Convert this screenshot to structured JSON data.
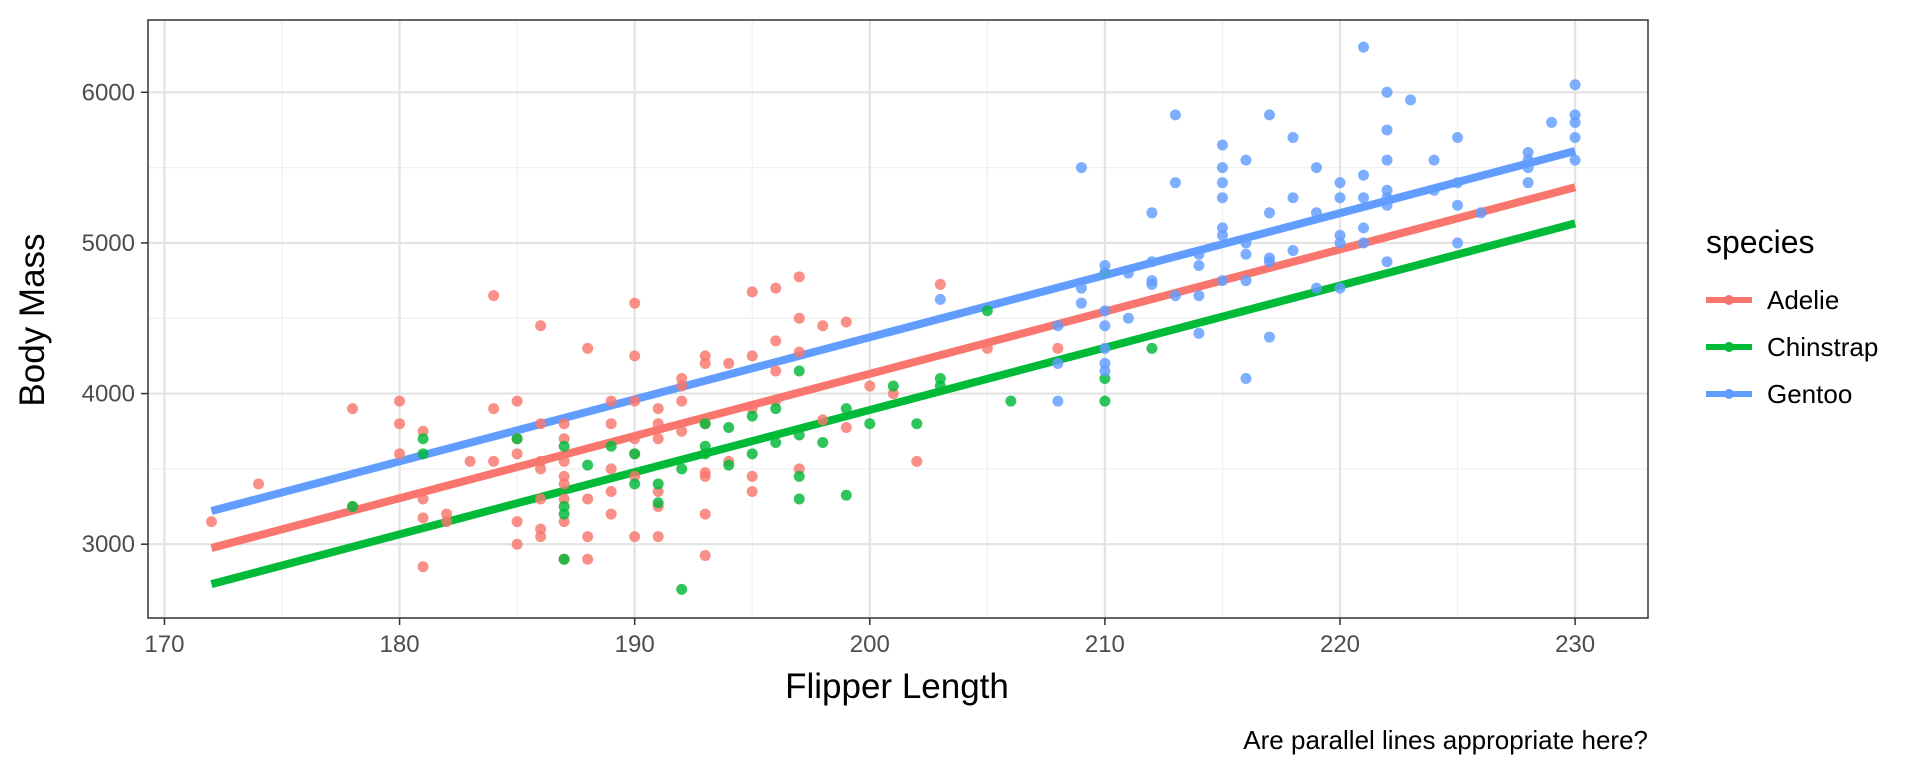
{
  "chart_data": {
    "type": "scatter",
    "xlabel": "Flipper Length",
    "ylabel": "Body Mass",
    "caption": "Are parallel lines appropriate here?",
    "legend_title": "species",
    "legend_position": "right",
    "grid": true,
    "xlim": [
      169.3,
      233.1
    ],
    "ylim": [
      2510,
      6480
    ],
    "xticks": [
      170,
      180,
      190,
      200,
      210,
      220,
      230
    ],
    "yticks": [
      3000,
      4000,
      5000,
      6000
    ],
    "series": [
      {
        "name": "Adelie",
        "color": "#F8766D",
        "fit": {
          "x": [
            172,
            230
          ],
          "y": [
            2975,
            5370
          ]
        },
        "points": [
          [
            172,
            3150
          ],
          [
            174,
            3400
          ],
          [
            178,
            3900
          ],
          [
            178,
            3250
          ],
          [
            180,
            3950
          ],
          [
            180,
            3800
          ],
          [
            180,
            3600
          ],
          [
            181,
            3750
          ],
          [
            181,
            3300
          ],
          [
            181,
            3175
          ],
          [
            181,
            2850
          ],
          [
            182,
            3200
          ],
          [
            182,
            3150
          ],
          [
            183,
            3550
          ],
          [
            184,
            4650
          ],
          [
            184,
            3900
          ],
          [
            184,
            3550
          ],
          [
            185,
            3950
          ],
          [
            185,
            3700
          ],
          [
            185,
            3600
          ],
          [
            185,
            3150
          ],
          [
            185,
            3000
          ],
          [
            186,
            4450
          ],
          [
            186,
            3800
          ],
          [
            186,
            3550
          ],
          [
            186,
            3500
          ],
          [
            186,
            3300
          ],
          [
            186,
            3100
          ],
          [
            186,
            3050
          ],
          [
            187,
            3800
          ],
          [
            187,
            3700
          ],
          [
            187,
            3550
          ],
          [
            187,
            3450
          ],
          [
            187,
            3400
          ],
          [
            187,
            3300
          ],
          [
            187,
            3150
          ],
          [
            187,
            2900
          ],
          [
            188,
            4300
          ],
          [
            188,
            3300
          ],
          [
            188,
            3050
          ],
          [
            188,
            2900
          ],
          [
            189,
            3950
          ],
          [
            189,
            3800
          ],
          [
            189,
            3500
          ],
          [
            189,
            3350
          ],
          [
            189,
            3200
          ],
          [
            190,
            4600
          ],
          [
            190,
            4250
          ],
          [
            190,
            3950
          ],
          [
            190,
            3700
          ],
          [
            190,
            3600
          ],
          [
            190,
            3450
          ],
          [
            190,
            3050
          ],
          [
            191,
            3900
          ],
          [
            191,
            3800
          ],
          [
            191,
            3700
          ],
          [
            191,
            3350
          ],
          [
            191,
            3250
          ],
          [
            191,
            3050
          ],
          [
            192,
            4100
          ],
          [
            192,
            4050
          ],
          [
            192,
            3950
          ],
          [
            192,
            3750
          ],
          [
            193,
            4250
          ],
          [
            193,
            4200
          ],
          [
            193,
            3800
          ],
          [
            193,
            3475
          ],
          [
            193,
            3450
          ],
          [
            193,
            3200
          ],
          [
            193,
            2925
          ],
          [
            194,
            4200
          ],
          [
            194,
            3550
          ],
          [
            195,
            4675
          ],
          [
            195,
            4250
          ],
          [
            195,
            3900
          ],
          [
            195,
            3450
          ],
          [
            195,
            3350
          ],
          [
            196,
            4700
          ],
          [
            196,
            4350
          ],
          [
            196,
            4150
          ],
          [
            196,
            3950
          ],
          [
            197,
            4775
          ],
          [
            197,
            4500
          ],
          [
            197,
            4275
          ],
          [
            197,
            3500
          ],
          [
            198,
            4450
          ],
          [
            198,
            3825
          ],
          [
            199,
            4475
          ],
          [
            199,
            3775
          ],
          [
            200,
            4050
          ],
          [
            201,
            4000
          ],
          [
            202,
            3550
          ],
          [
            203,
            4725
          ],
          [
            205,
            4300
          ],
          [
            208,
            4300
          ]
        ]
      },
      {
        "name": "Chinstrap",
        "color": "#00BA38",
        "fit": {
          "x": [
            172,
            230
          ],
          "y": [
            2735,
            5130
          ]
        },
        "points": [
          [
            178,
            3250
          ],
          [
            181,
            3700
          ],
          [
            181,
            3600
          ],
          [
            185,
            3700
          ],
          [
            187,
            3650
          ],
          [
            187,
            3250
          ],
          [
            187,
            3200
          ],
          [
            187,
            2900
          ],
          [
            188,
            3525
          ],
          [
            189,
            3650
          ],
          [
            190,
            3600
          ],
          [
            190,
            3400
          ],
          [
            191,
            3400
          ],
          [
            191,
            3275
          ],
          [
            192,
            3500
          ],
          [
            192,
            2700
          ],
          [
            193,
            3800
          ],
          [
            193,
            3650
          ],
          [
            193,
            3600
          ],
          [
            194,
            3775
          ],
          [
            194,
            3525
          ],
          [
            195,
            3850
          ],
          [
            195,
            3600
          ],
          [
            196,
            3900
          ],
          [
            196,
            3675
          ],
          [
            197,
            4150
          ],
          [
            197,
            3725
          ],
          [
            197,
            3450
          ],
          [
            197,
            3300
          ],
          [
            198,
            3675
          ],
          [
            199,
            3900
          ],
          [
            199,
            3325
          ],
          [
            200,
            3800
          ],
          [
            201,
            4050
          ],
          [
            202,
            3800
          ],
          [
            203,
            4100
          ],
          [
            203,
            4050
          ],
          [
            205,
            4550
          ],
          [
            206,
            3950
          ],
          [
            210,
            4800
          ],
          [
            210,
            4100
          ],
          [
            210,
            3950
          ],
          [
            212,
            4300
          ]
        ]
      },
      {
        "name": "Gentoo",
        "color": "#619CFF",
        "fit": {
          "x": [
            172,
            230
          ],
          "y": [
            3220,
            5610
          ]
        },
        "points": [
          [
            203,
            4625
          ],
          [
            208,
            4450
          ],
          [
            208,
            4200
          ],
          [
            208,
            3950
          ],
          [
            209,
            5500
          ],
          [
            209,
            4700
          ],
          [
            209,
            4600
          ],
          [
            210,
            4850
          ],
          [
            210,
            4800
          ],
          [
            210,
            4550
          ],
          [
            210,
            4450
          ],
          [
            210,
            4300
          ],
          [
            210,
            4200
          ],
          [
            210,
            4150
          ],
          [
            211,
            4800
          ],
          [
            211,
            4500
          ],
          [
            212,
            5200
          ],
          [
            212,
            4875
          ],
          [
            212,
            4750
          ],
          [
            212,
            4725
          ],
          [
            213,
            5850
          ],
          [
            213,
            5400
          ],
          [
            213,
            4650
          ],
          [
            214,
            4925
          ],
          [
            214,
            4850
          ],
          [
            214,
            4650
          ],
          [
            214,
            4400
          ],
          [
            215,
            5650
          ],
          [
            215,
            5500
          ],
          [
            215,
            5400
          ],
          [
            215,
            5300
          ],
          [
            215,
            5100
          ],
          [
            215,
            5050
          ],
          [
            215,
            4750
          ],
          [
            216,
            5550
          ],
          [
            216,
            5000
          ],
          [
            216,
            4925
          ],
          [
            216,
            4750
          ],
          [
            216,
            4100
          ],
          [
            217,
            5850
          ],
          [
            217,
            5200
          ],
          [
            217,
            4900
          ],
          [
            217,
            4875
          ],
          [
            217,
            4375
          ],
          [
            218,
            5700
          ],
          [
            218,
            5300
          ],
          [
            218,
            4950
          ],
          [
            219,
            5500
          ],
          [
            219,
            5200
          ],
          [
            219,
            4700
          ],
          [
            220,
            5400
          ],
          [
            220,
            5300
          ],
          [
            220,
            5050
          ],
          [
            220,
            5000
          ],
          [
            220,
            4700
          ],
          [
            221,
            6300
          ],
          [
            221,
            5450
          ],
          [
            221,
            5300
          ],
          [
            221,
            5100
          ],
          [
            221,
            5000
          ],
          [
            222,
            6000
          ],
          [
            222,
            5750
          ],
          [
            222,
            5550
          ],
          [
            222,
            5350
          ],
          [
            222,
            5300
          ],
          [
            222,
            5250
          ],
          [
            222,
            4875
          ],
          [
            223,
            5950
          ],
          [
            224,
            5550
          ],
          [
            224,
            5350
          ],
          [
            225,
            5700
          ],
          [
            225,
            5400
          ],
          [
            225,
            5250
          ],
          [
            225,
            5000
          ],
          [
            226,
            5200
          ],
          [
            228,
            5600
          ],
          [
            228,
            5550
          ],
          [
            228,
            5500
          ],
          [
            228,
            5400
          ],
          [
            229,
            5800
          ],
          [
            230,
            6050
          ],
          [
            230,
            5850
          ],
          [
            230,
            5800
          ],
          [
            230,
            5700
          ],
          [
            230,
            5550
          ]
        ]
      }
    ]
  }
}
